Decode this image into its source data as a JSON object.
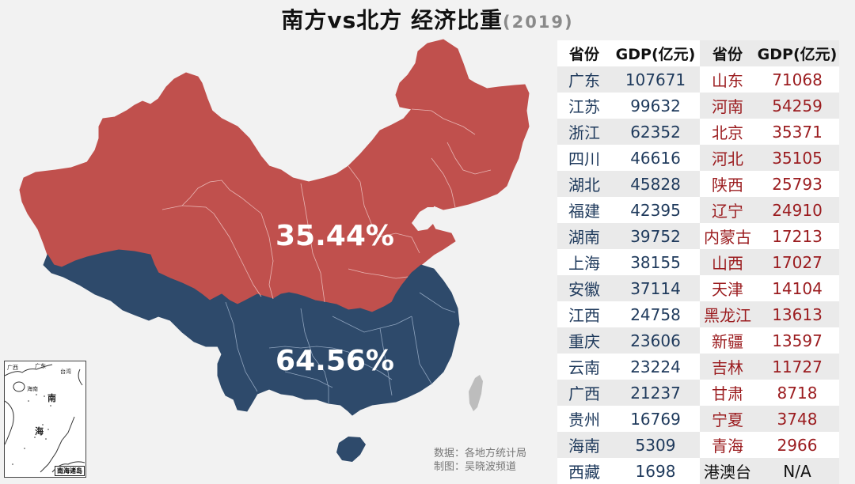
{
  "title": {
    "main": "南方vs北方 经济比重",
    "year": "(2019)"
  },
  "colors": {
    "north": "#c0504d",
    "south": "#2e4a6b",
    "taiwan": "#bdbdbd",
    "background": "#f2f2f2",
    "north_text": "#9b1c1f",
    "south_text": "#1f3a5c"
  },
  "map": {
    "north_share": "35.44%",
    "south_share": "64.56%",
    "inset": {
      "labels": [
        "广西",
        "广东",
        "台湾",
        "海南",
        "南",
        "海"
      ],
      "title": "南海诸岛"
    }
  },
  "credits": {
    "data": "数据：各地方统计局",
    "author": "制图：吴晓波频道"
  },
  "table": {
    "headers": {
      "prov_left": "省份",
      "gdp_left": "GDP(亿元)",
      "prov_right": "省份",
      "gdp_right": "GDP(亿元)"
    },
    "south": [
      {
        "prov": "广东",
        "gdp": "107671"
      },
      {
        "prov": "江苏",
        "gdp": "99632"
      },
      {
        "prov": "浙江",
        "gdp": "62352"
      },
      {
        "prov": "四川",
        "gdp": "46616"
      },
      {
        "prov": "湖北",
        "gdp": "45828"
      },
      {
        "prov": "福建",
        "gdp": "42395"
      },
      {
        "prov": "湖南",
        "gdp": "39752"
      },
      {
        "prov": "上海",
        "gdp": "38155"
      },
      {
        "prov": "安徽",
        "gdp": "37114"
      },
      {
        "prov": "江西",
        "gdp": "24758"
      },
      {
        "prov": "重庆",
        "gdp": "23606"
      },
      {
        "prov": "云南",
        "gdp": "23224"
      },
      {
        "prov": "广西",
        "gdp": "21237"
      },
      {
        "prov": "贵州",
        "gdp": "16769"
      },
      {
        "prov": "海南",
        "gdp": "5309"
      },
      {
        "prov": "西藏",
        "gdp": "1698"
      }
    ],
    "north": [
      {
        "prov": "山东",
        "gdp": "71068"
      },
      {
        "prov": "河南",
        "gdp": "54259"
      },
      {
        "prov": "北京",
        "gdp": "35371"
      },
      {
        "prov": "河北",
        "gdp": "35105"
      },
      {
        "prov": "陕西",
        "gdp": "25793"
      },
      {
        "prov": "辽宁",
        "gdp": "24910"
      },
      {
        "prov": "内蒙古",
        "gdp": "17213"
      },
      {
        "prov": "山西",
        "gdp": "17027"
      },
      {
        "prov": "天津",
        "gdp": "14104"
      },
      {
        "prov": "黑龙江",
        "gdp": "13613"
      },
      {
        "prov": "新疆",
        "gdp": "13597"
      },
      {
        "prov": "吉林",
        "gdp": "11727"
      },
      {
        "prov": "甘肃",
        "gdp": "8718"
      },
      {
        "prov": "宁夏",
        "gdp": "3748"
      },
      {
        "prov": "青海",
        "gdp": "2966"
      },
      {
        "prov": "港澳台",
        "gdp": "N/A"
      }
    ]
  }
}
